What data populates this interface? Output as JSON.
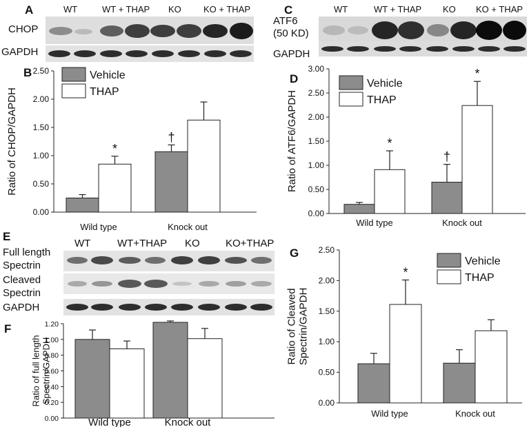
{
  "panels": {
    "A": {
      "letter": "A",
      "lanes": [
        "WT",
        "WT + THAP",
        "KO",
        "KO + THAP"
      ],
      "rows": [
        "CHOP",
        "GAPDH"
      ]
    },
    "C": {
      "letter": "C",
      "lanes": [
        "WT",
        "WT + THAP",
        "KO",
        "KO + THAP"
      ],
      "rows": [
        "ATF6",
        "(50 KD)",
        "GAPDH"
      ]
    },
    "E": {
      "letter": "E",
      "lanes": [
        "WT",
        "WT+THAP",
        "KO",
        "KO+THAP"
      ],
      "rows": [
        "Full length",
        "Spectrin",
        "Cleaved",
        "Spectrin",
        "GAPDH"
      ]
    }
  },
  "chart_data": [
    {
      "panel": "B",
      "type": "bar",
      "categories": [
        "Wild type",
        "Knock out"
      ],
      "series": [
        {
          "name": "Vehicle",
          "color": "#8c8c8c",
          "values": [
            0.25,
            1.07
          ],
          "errors": [
            0.06,
            0.12
          ]
        },
        {
          "name": "THAP",
          "color": "#ffffff",
          "values": [
            0.85,
            1.63
          ],
          "errors": [
            0.14,
            0.32
          ]
        }
      ],
      "annotations": [
        [
          "",
          "†"
        ],
        [
          "*",
          ""
        ]
      ],
      "ylabel": "Ratio of CHOP/GAPDH",
      "ylim": [
        0,
        2.5
      ],
      "yticks": [
        "0.00",
        "0.50",
        "1.00",
        "1.50",
        "2.00",
        "2.50"
      ],
      "legend": "top-left"
    },
    {
      "panel": "D",
      "type": "bar",
      "categories": [
        "Wild type",
        "Knock out"
      ],
      "series": [
        {
          "name": "Vehicle",
          "color": "#8c8c8c",
          "values": [
            0.19,
            0.65
          ],
          "errors": [
            0.04,
            0.37
          ]
        },
        {
          "name": "THAP",
          "color": "#ffffff",
          "values": [
            0.91,
            2.24
          ],
          "errors": [
            0.39,
            0.5
          ]
        }
      ],
      "annotations": [
        [
          "",
          "†"
        ],
        [
          "*",
          "*"
        ]
      ],
      "ylabel": "Ratio of ATF6/GAPDH",
      "ylim": [
        0,
        3.0
      ],
      "yticks": [
        "0.00",
        "0.50",
        "1.00",
        "1.50",
        "2.00",
        "2.50",
        "3.00"
      ],
      "legend": "top-left"
    },
    {
      "panel": "F",
      "type": "bar",
      "categories": [
        "Wild type",
        "Knock out"
      ],
      "series": [
        {
          "name": "Vehicle",
          "color": "#8c8c8c",
          "values": [
            1.0,
            1.22
          ],
          "errors": [
            0.12,
            0.25
          ]
        },
        {
          "name": "THAP",
          "color": "#ffffff",
          "values": [
            0.88,
            1.01
          ],
          "errors": [
            0.1,
            0.13
          ]
        }
      ],
      "annotations": [
        [
          "",
          ""
        ],
        [
          "",
          ""
        ]
      ],
      "ylabel": "Ratio of full length Spectrin/GAPDH",
      "ylim": [
        0,
        1.2
      ],
      "yticks": [
        "0.00",
        "0.20",
        "0.40",
        "0.60",
        "0.80",
        "1.00",
        "1.20"
      ],
      "legend": "none"
    },
    {
      "panel": "G",
      "type": "bar",
      "categories": [
        "Wild type",
        "Knock out"
      ],
      "series": [
        {
          "name": "Vehicle",
          "color": "#8c8c8c",
          "values": [
            0.64,
            0.65
          ],
          "errors": [
            0.17,
            0.22
          ]
        },
        {
          "name": "THAP",
          "color": "#ffffff",
          "values": [
            1.61,
            1.18
          ],
          "errors": [
            0.4,
            0.18
          ]
        }
      ],
      "annotations": [
        [
          "",
          ""
        ],
        [
          "*",
          ""
        ]
      ],
      "ylabel": "Ratio of Cleaved Spectrin/GAPDH",
      "ylim": [
        0,
        2.5
      ],
      "yticks": [
        "0.00",
        "0.50",
        "1.00",
        "1.50",
        "2.00",
        "2.50"
      ],
      "legend": "top-right"
    }
  ]
}
